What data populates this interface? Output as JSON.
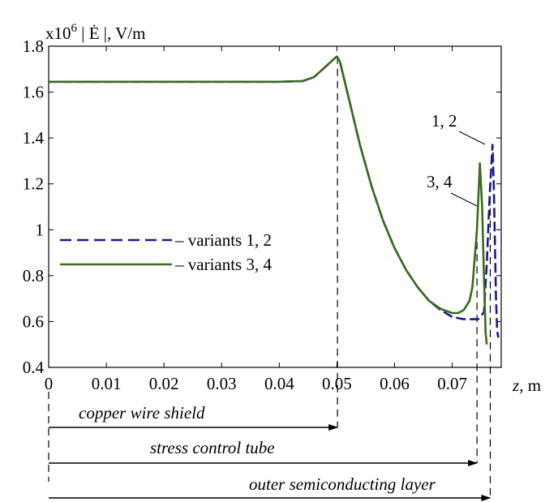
{
  "chart_data": {
    "type": "line",
    "ylabel_prefix": "x10",
    "ylabel_exponent": "6",
    "ylabel_suffix": " | Ė |, V/m",
    "xlabel_var": "z",
    "xlabel_unit": ", m",
    "xlim": [
      0,
      0.0785
    ],
    "ylim": [
      0.4,
      1.8
    ],
    "x_ticks": [
      0,
      0.01,
      0.02,
      0.03,
      0.04,
      0.05,
      0.06,
      0.07
    ],
    "x_tick_labels": [
      "0",
      "0.01",
      "0.02",
      "0.03",
      "0.04",
      "0.05",
      "0.06",
      "0.07"
    ],
    "y_ticks": [
      0.4,
      0.6,
      0.8,
      1.0,
      1.2,
      1.4,
      1.6,
      1.8
    ],
    "y_tick_labels": [
      "0.4",
      "0.6",
      "0.8",
      "1",
      "1.2",
      "1.4",
      "1.6",
      "1.8"
    ],
    "grid": false,
    "legend_placement": "left-middle",
    "series": [
      {
        "name": "– variants 1, 2",
        "color": "#1a1a8c",
        "style": "dashed",
        "x": [
          0,
          0.01,
          0.02,
          0.03,
          0.04,
          0.044,
          0.046,
          0.048,
          0.0495,
          0.05,
          0.0505,
          0.052,
          0.054,
          0.056,
          0.058,
          0.06,
          0.062,
          0.064,
          0.066,
          0.068,
          0.07,
          0.072,
          0.073,
          0.0745,
          0.0755,
          0.076,
          0.0765,
          0.077,
          0.0772,
          0.0774,
          0.0776,
          0.0778,
          0.078
        ],
        "y": [
          1.645,
          1.645,
          1.645,
          1.645,
          1.645,
          1.648,
          1.665,
          1.71,
          1.745,
          1.755,
          1.735,
          1.58,
          1.37,
          1.19,
          1.04,
          0.92,
          0.825,
          0.75,
          0.69,
          0.65,
          0.62,
          0.61,
          0.61,
          0.61,
          0.64,
          0.85,
          1.15,
          1.37,
          1.2,
          0.95,
          0.7,
          0.56,
          0.53
        ]
      },
      {
        "name": "– variants 3, 4",
        "color": "#3a6b1c",
        "style": "solid",
        "x": [
          0,
          0.01,
          0.02,
          0.03,
          0.04,
          0.044,
          0.046,
          0.048,
          0.0495,
          0.05,
          0.0505,
          0.052,
          0.054,
          0.056,
          0.058,
          0.06,
          0.062,
          0.064,
          0.066,
          0.068,
          0.07,
          0.071,
          0.072,
          0.073,
          0.0735,
          0.0743,
          0.0748,
          0.0752,
          0.0755,
          0.0758,
          0.076
        ],
        "y": [
          1.645,
          1.645,
          1.645,
          1.645,
          1.645,
          1.648,
          1.665,
          1.71,
          1.745,
          1.755,
          1.735,
          1.58,
          1.37,
          1.19,
          1.04,
          0.92,
          0.825,
          0.75,
          0.69,
          0.655,
          0.637,
          0.637,
          0.65,
          0.69,
          0.75,
          1.0,
          1.29,
          1.1,
          0.8,
          0.55,
          0.5
        ]
      }
    ],
    "annotations": {
      "label_12": "1, 2",
      "label_34": "3, 4",
      "copper": "copper wire shield",
      "stress": "stress control tube",
      "outer": "outer semiconducting layer"
    }
  }
}
